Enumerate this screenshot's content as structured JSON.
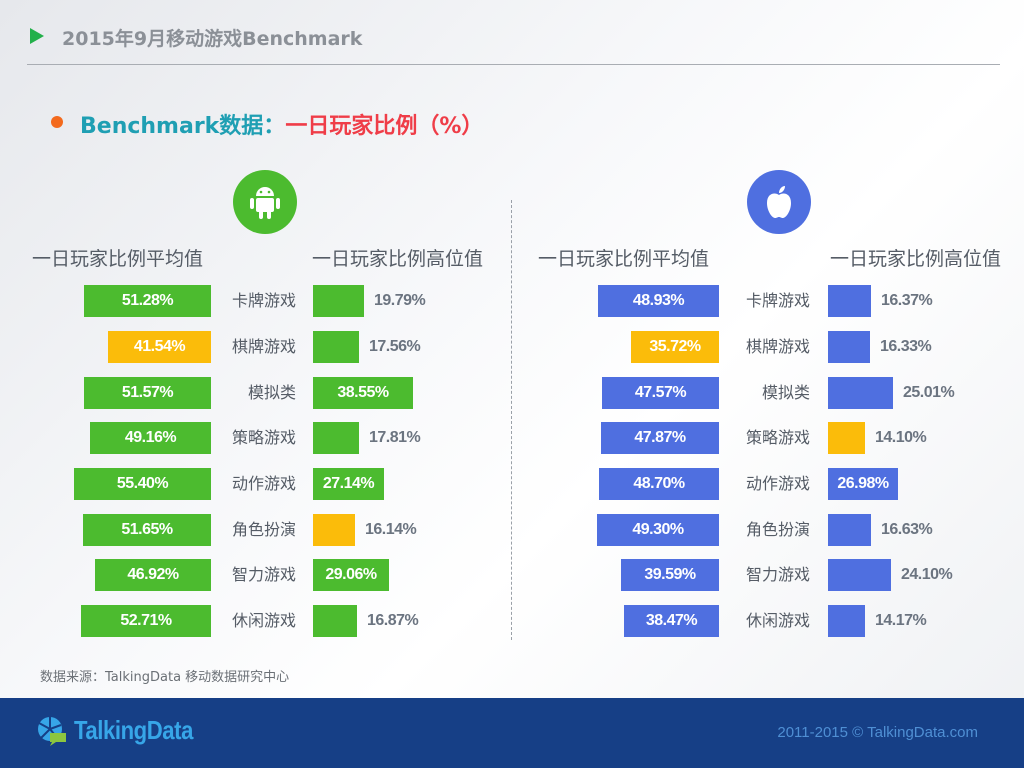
{
  "header": {
    "title": "2015年9月移动游戏Benchmark"
  },
  "subtitle": {
    "part_a": "Benchmark数据：",
    "part_b": "一日玩家比例（%）"
  },
  "android": {
    "icon": "android-icon",
    "avg_header": "一日玩家比例平均值",
    "high_header": "一日玩家比例高位值"
  },
  "ios": {
    "icon": "apple-icon",
    "avg_header": "一日玩家比例平均值",
    "high_header": "一日玩家比例高位值"
  },
  "categories": [
    "卡牌游戏",
    "棋牌游戏",
    "模拟类",
    "策略游戏",
    "动作游戏",
    "角色扮演",
    "智力游戏",
    "休闲游戏"
  ],
  "colors": {
    "android": "#4cbb2f",
    "ios": "#4f6fe0",
    "highlight": "#fbbc0a"
  },
  "chart_data": [
    {
      "type": "bar",
      "title": "Android 一日玩家比例平均值",
      "categories": [
        "卡牌游戏",
        "棋牌游戏",
        "模拟类",
        "策略游戏",
        "动作游戏",
        "角色扮演",
        "智力游戏",
        "休闲游戏"
      ],
      "values": [
        51.28,
        41.54,
        51.57,
        49.16,
        55.4,
        51.65,
        46.92,
        52.71
      ],
      "labels": [
        "51.28%",
        "41.54%",
        "51.57%",
        "49.16%",
        "55.40%",
        "51.65%",
        "46.92%",
        "52.71%"
      ],
      "highlight_index": 1,
      "orientation": "horizontal-left"
    },
    {
      "type": "bar",
      "title": "Android 一日玩家比例高位值",
      "categories": [
        "卡牌游戏",
        "棋牌游戏",
        "模拟类",
        "策略游戏",
        "动作游戏",
        "角色扮演",
        "智力游戏",
        "休闲游戏"
      ],
      "values": [
        19.79,
        17.56,
        38.55,
        17.81,
        27.14,
        16.14,
        29.06,
        16.87
      ],
      "labels": [
        "19.79%",
        "17.56%",
        "38.55%",
        "17.81%",
        "27.14%",
        "16.14%",
        "29.06%",
        "16.87%"
      ],
      "highlight_index": 5,
      "orientation": "horizontal-right"
    },
    {
      "type": "bar",
      "title": "iOS 一日玩家比例平均值",
      "categories": [
        "卡牌游戏",
        "棋牌游戏",
        "模拟类",
        "策略游戏",
        "动作游戏",
        "角色扮演",
        "智力游戏",
        "休闲游戏"
      ],
      "values": [
        48.93,
        35.72,
        47.57,
        47.87,
        48.7,
        49.3,
        39.59,
        38.47
      ],
      "labels": [
        "48.93%",
        "35.72%",
        "47.57%",
        "47.87%",
        "48.70%",
        "49.30%",
        "39.59%",
        "38.47%"
      ],
      "highlight_index": 1,
      "orientation": "horizontal-left"
    },
    {
      "type": "bar",
      "title": "iOS 一日玩家比例高位值",
      "categories": [
        "卡牌游戏",
        "棋牌游戏",
        "模拟类",
        "策略游戏",
        "动作游戏",
        "角色扮演",
        "智力游戏",
        "休闲游戏"
      ],
      "values": [
        16.37,
        16.33,
        25.01,
        14.1,
        26.98,
        16.63,
        24.1,
        14.17
      ],
      "labels": [
        "16.37%",
        "16.33%",
        "25.01%",
        "14.10%",
        "26.98%",
        "16.63%",
        "24.10%",
        "14.17%"
      ],
      "highlight_index": 3,
      "orientation": "horizontal-right"
    }
  ],
  "source": "数据来源：TalkingData 移动数据研究中心",
  "footer": {
    "logo_text": "TalkingData",
    "copyright": "2011-2015 © TalkingData.com"
  }
}
